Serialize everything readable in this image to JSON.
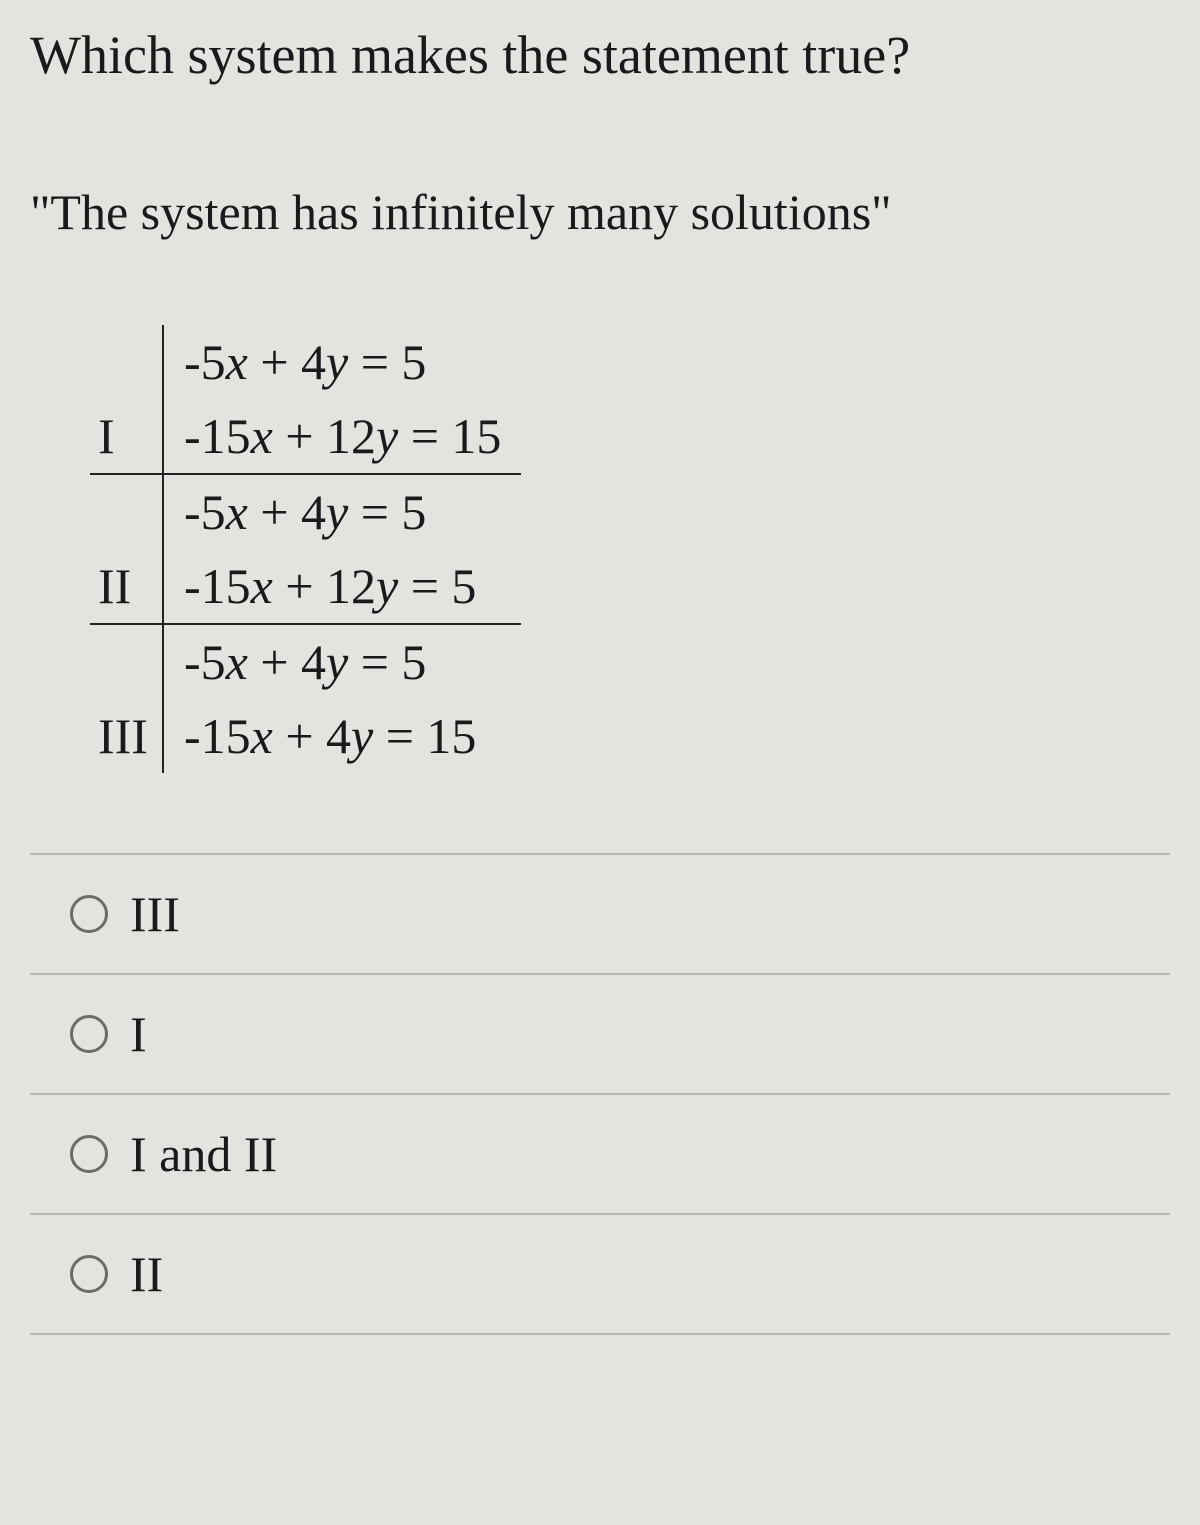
{
  "question": "Which system makes the statement true?",
  "statement": "\"The system has infinitely many solutions\"",
  "systems": {
    "rows": [
      {
        "label": "I",
        "eq1": "-5x + 4y = 5",
        "eq2": "-15x + 12y = 15"
      },
      {
        "label": "II",
        "eq1": "-5x + 4y = 5",
        "eq2": "-15x + 12y = 5"
      },
      {
        "label": "III",
        "eq1": "-5x + 4y = 5",
        "eq2": "-15x + 4y = 15"
      }
    ]
  },
  "options": [
    {
      "label": "III"
    },
    {
      "label": "I"
    },
    {
      "label": "I and II"
    },
    {
      "label": "II"
    }
  ],
  "style": {
    "background_color": "#e2e4e0",
    "text_color": "#1a1a1a",
    "border_color": "#222222",
    "option_divider_color": "#b8bab6",
    "radio_border_color": "#6a6c68",
    "question_fontsize": 54,
    "statement_fontsize": 50,
    "table_fontsize": 50,
    "option_fontsize": 50,
    "font_family": "Times New Roman"
  }
}
